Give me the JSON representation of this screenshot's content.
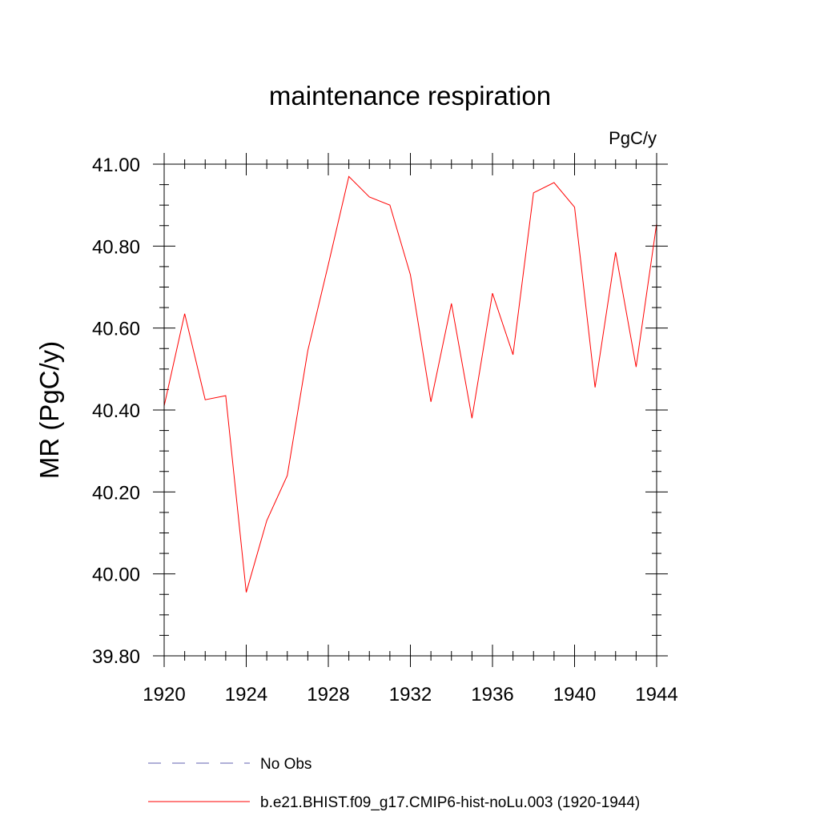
{
  "chart_data": {
    "type": "line",
    "title": "maintenance respiration",
    "units_label": "PgC/y",
    "ylabel": "MR  (PgC/y)",
    "xlabel": "",
    "xlim": [
      1920,
      1944
    ],
    "ylim": [
      39.8,
      41.0
    ],
    "x_ticks": [
      1920,
      1924,
      1928,
      1932,
      1936,
      1940,
      1944
    ],
    "x_tick_labels": [
      "1920",
      "1924",
      "1928",
      "1932",
      "1936",
      "1940",
      "1944"
    ],
    "y_ticks": [
      39.8,
      40.0,
      40.2,
      40.4,
      40.6,
      40.8,
      41.0
    ],
    "y_tick_labels": [
      "39.80",
      "40.00",
      "40.20",
      "40.40",
      "40.60",
      "40.80",
      "41.00"
    ],
    "x_minor_step": 1,
    "y_minor_step": 0.05,
    "grid": false,
    "legend_position": "bottom",
    "series": [
      {
        "name": "No Obs",
        "color": "#8080c0",
        "style": "dashed",
        "x": [],
        "values": []
      },
      {
        "name": "b.e21.BHIST.f09_g17.CMIP6-hist-noLu.003 (1920-1944)",
        "color": "#ff0000",
        "style": "solid",
        "x": [
          1920,
          1921,
          1922,
          1923,
          1924,
          1925,
          1926,
          1927,
          1928,
          1929,
          1930,
          1931,
          1932,
          1933,
          1934,
          1935,
          1936,
          1937,
          1938,
          1939,
          1940,
          1941,
          1942,
          1943,
          1944
        ],
        "values": [
          40.41,
          40.635,
          40.425,
          40.435,
          39.955,
          40.13,
          40.24,
          40.545,
          40.755,
          40.97,
          40.92,
          40.9,
          40.73,
          40.42,
          40.66,
          40.38,
          40.685,
          40.535,
          40.93,
          40.955,
          40.895,
          40.455,
          40.785,
          40.505,
          40.855
        ]
      }
    ]
  }
}
